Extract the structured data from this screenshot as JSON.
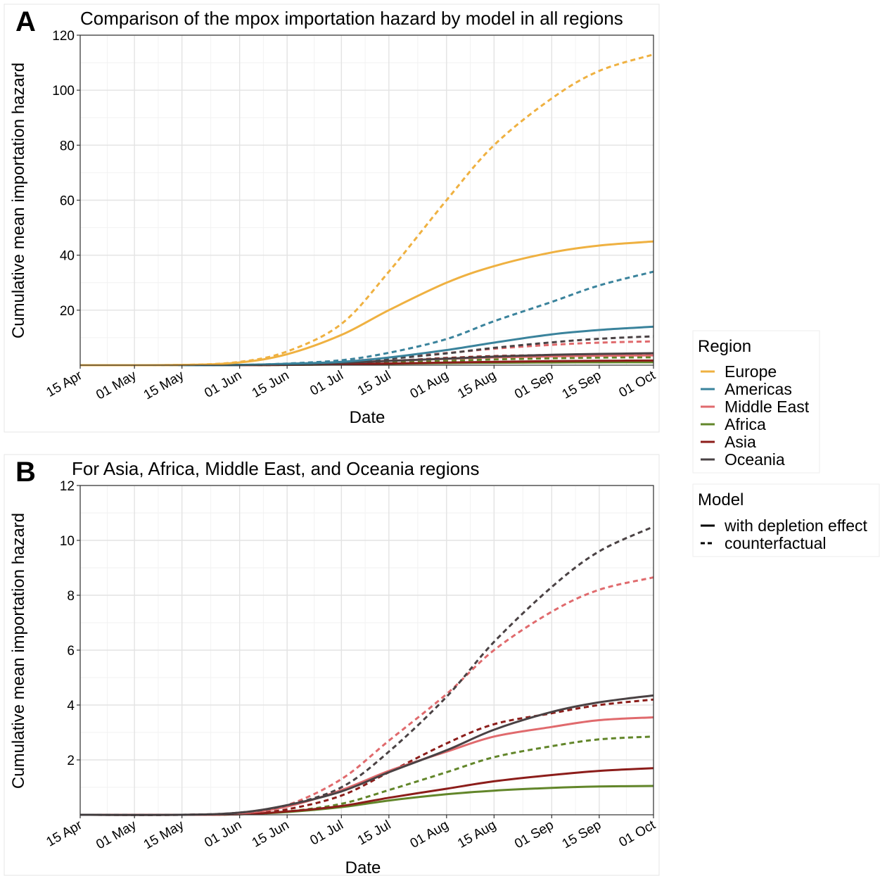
{
  "figure": {
    "legend_region": {
      "title": "Region",
      "entries": [
        {
          "label": "Europe",
          "color": "#EFB141"
        },
        {
          "label": "Americas",
          "color": "#3A839C"
        },
        {
          "label": "Middle East",
          "color": "#E06A6D"
        },
        {
          "label": "Africa",
          "color": "#62862A"
        },
        {
          "label": "Asia",
          "color": "#8C1D1A"
        },
        {
          "label": "Oceania",
          "color": "#4A4244"
        }
      ]
    },
    "legend_model": {
      "title": "Model",
      "entries": [
        {
          "label": "with depletion effect",
          "linestyle": "solid"
        },
        {
          "label": "counterfactual",
          "linestyle": "dashed"
        }
      ]
    }
  },
  "chart_data": [
    {
      "panel": "A",
      "type": "line",
      "title": "Comparison of the mpox importation hazard by model in all regions",
      "xlabel": "Date",
      "ylabel": "Cumulative mean importation hazard",
      "x_ticks": [
        "15 Apr",
        "01 May",
        "15 May",
        "01 Jun",
        "15 Jun",
        "01 Jul",
        "15 Jul",
        "01 Aug",
        "15 Aug",
        "01 Sep",
        "15 Sep",
        "01 Oct"
      ],
      "x_range": [
        "2024-04-15",
        "2024-10-01"
      ],
      "y_ticks": [
        20,
        40,
        60,
        80,
        100,
        120
      ],
      "ylim": [
        0,
        120
      ],
      "grid": true,
      "x": [
        "2024-04-15",
        "2024-05-15",
        "2024-06-01",
        "2024-06-15",
        "2024-07-01",
        "2024-07-15",
        "2024-08-01",
        "2024-08-15",
        "2024-09-01",
        "2024-09-15",
        "2024-10-01"
      ],
      "series": [
        {
          "region": "Europe",
          "model": "with depletion effect",
          "values": [
            0,
            0.1,
            1.0,
            4.0,
            11,
            20,
            30,
            36,
            41,
            43.5,
            45
          ]
        },
        {
          "region": "Europe",
          "model": "counterfactual",
          "values": [
            0,
            0.1,
            1.2,
            5.0,
            15,
            34,
            60,
            80,
            97,
            107,
            113
          ]
        },
        {
          "region": "Americas",
          "model": "with depletion effect",
          "values": [
            0,
            0,
            0.1,
            0.5,
            1.2,
            2.8,
            5.5,
            8.2,
            11.2,
            12.8,
            14
          ]
        },
        {
          "region": "Americas",
          "model": "counterfactual",
          "values": [
            0,
            0,
            0.1,
            0.6,
            1.8,
            4.5,
            9.5,
            16,
            23,
            29,
            34
          ]
        },
        {
          "region": "Middle East",
          "model": "with depletion effect",
          "values": [
            0,
            0,
            0.05,
            0.3,
            0.9,
            1.6,
            2.3,
            2.85,
            3.2,
            3.45,
            3.55
          ]
        },
        {
          "region": "Middle East",
          "model": "counterfactual",
          "values": [
            0,
            0,
            0.05,
            0.35,
            1.3,
            2.7,
            4.4,
            6.0,
            7.4,
            8.2,
            8.65
          ]
        },
        {
          "region": "Africa",
          "model": "with depletion effect",
          "values": [
            0,
            0,
            0.02,
            0.1,
            0.28,
            0.52,
            0.75,
            0.88,
            0.98,
            1.03,
            1.05
          ]
        },
        {
          "region": "Africa",
          "model": "counterfactual",
          "values": [
            0,
            0,
            0.02,
            0.12,
            0.4,
            0.9,
            1.55,
            2.1,
            2.5,
            2.75,
            2.85
          ]
        },
        {
          "region": "Asia",
          "model": "with depletion effect",
          "values": [
            0,
            0,
            0.02,
            0.12,
            0.32,
            0.62,
            0.95,
            1.22,
            1.45,
            1.6,
            1.7
          ]
        },
        {
          "region": "Asia",
          "model": "counterfactual",
          "values": [
            0,
            0,
            0.03,
            0.2,
            0.7,
            1.55,
            2.6,
            3.3,
            3.7,
            4.0,
            4.2
          ]
        },
        {
          "region": "Oceania",
          "model": "with depletion effect",
          "values": [
            0,
            0,
            0.08,
            0.35,
            0.85,
            1.55,
            2.35,
            3.1,
            3.75,
            4.1,
            4.35
          ]
        },
        {
          "region": "Oceania",
          "model": "counterfactual",
          "values": [
            0,
            0,
            0.08,
            0.35,
            1.0,
            2.3,
            4.3,
            6.3,
            8.3,
            9.6,
            10.5
          ]
        }
      ]
    },
    {
      "panel": "B",
      "type": "line",
      "title": "For Asia, Africa, Middle East, and Oceania regions",
      "xlabel": "Date",
      "ylabel": "Cumulative mean importation hazard",
      "x_ticks": [
        "15 Apr",
        "01 May",
        "15 May",
        "01 Jun",
        "15 Jun",
        "01 Jul",
        "15 Jul",
        "01 Aug",
        "15 Aug",
        "01 Sep",
        "15 Sep",
        "01 Oct"
      ],
      "x_range": [
        "2024-04-15",
        "2024-10-01"
      ],
      "y_ticks": [
        2,
        4,
        6,
        8,
        10,
        12
      ],
      "ylim": [
        0,
        12
      ],
      "grid": true,
      "x": [
        "2024-04-15",
        "2024-05-15",
        "2024-06-01",
        "2024-06-15",
        "2024-07-01",
        "2024-07-15",
        "2024-08-01",
        "2024-08-15",
        "2024-09-01",
        "2024-09-15",
        "2024-10-01"
      ],
      "series": [
        {
          "region": "Middle East",
          "model": "with depletion effect",
          "values": [
            0,
            0,
            0.05,
            0.3,
            0.9,
            1.6,
            2.3,
            2.85,
            3.2,
            3.45,
            3.55
          ]
        },
        {
          "region": "Middle East",
          "model": "counterfactual",
          "values": [
            0,
            0,
            0.05,
            0.35,
            1.3,
            2.7,
            4.4,
            6.0,
            7.4,
            8.2,
            8.65
          ]
        },
        {
          "region": "Africa",
          "model": "with depletion effect",
          "values": [
            0,
            0,
            0.02,
            0.1,
            0.28,
            0.52,
            0.75,
            0.88,
            0.98,
            1.03,
            1.05
          ]
        },
        {
          "region": "Africa",
          "model": "counterfactual",
          "values": [
            0,
            0,
            0.02,
            0.12,
            0.4,
            0.9,
            1.55,
            2.1,
            2.5,
            2.75,
            2.85
          ]
        },
        {
          "region": "Asia",
          "model": "with depletion effect",
          "values": [
            0,
            0,
            0.02,
            0.12,
            0.32,
            0.62,
            0.95,
            1.22,
            1.45,
            1.6,
            1.7
          ]
        },
        {
          "region": "Asia",
          "model": "counterfactual",
          "values": [
            0,
            0,
            0.03,
            0.2,
            0.7,
            1.55,
            2.6,
            3.3,
            3.7,
            4.0,
            4.2
          ]
        },
        {
          "region": "Oceania",
          "model": "with depletion effect",
          "values": [
            0,
            0,
            0.08,
            0.35,
            0.85,
            1.55,
            2.35,
            3.1,
            3.75,
            4.1,
            4.35
          ]
        },
        {
          "region": "Oceania",
          "model": "counterfactual",
          "values": [
            0,
            0,
            0.08,
            0.35,
            1.0,
            2.3,
            4.3,
            6.3,
            8.3,
            9.6,
            10.5
          ]
        }
      ]
    }
  ]
}
